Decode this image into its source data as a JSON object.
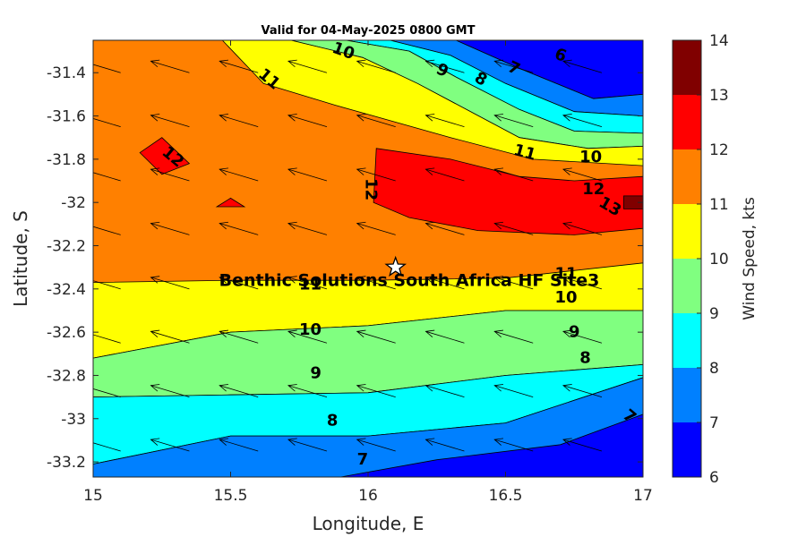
{
  "chart_data": {
    "type": "contour",
    "title": "Valid for 04-May-2025 0800 GMT",
    "xlabel": "Longitude, E",
    "ylabel": "Latitude, S",
    "xlim": [
      15,
      17
    ],
    "ylim": [
      -33.27,
      -31.25
    ],
    "xticks": [
      "15",
      "15.5",
      "16",
      "16.5",
      "17"
    ],
    "xtick_values": [
      15,
      15.5,
      16,
      16.5,
      17
    ],
    "yticks": [
      "-31.4",
      "-31.6",
      "-31.8",
      "-32",
      "-32.2",
      "-32.4",
      "-32.6",
      "-32.8",
      "-33",
      "-33.2"
    ],
    "ytick_values": [
      -31.4,
      -31.6,
      -31.8,
      -32,
      -32.2,
      -32.4,
      -32.6,
      -32.8,
      -33,
      -33.2
    ],
    "colorbar": {
      "label": "Wind Speed, kts",
      "ticks": [
        "6",
        "7",
        "8",
        "9",
        "10",
        "11",
        "12",
        "13",
        "14"
      ],
      "levels": [
        6,
        7,
        8,
        9,
        10,
        11,
        12,
        13,
        14
      ],
      "colors": [
        "#0000ff",
        "#0080ff",
        "#00ffff",
        "#80ff80",
        "#ffff00",
        "#ff8000",
        "#ff0000",
        "#800000"
      ]
    },
    "site": {
      "name": "Benthic Solutions South Africa HF Site3",
      "lon": 16.1,
      "lat": -32.3
    },
    "contour_bands": [
      {
        "min": 6,
        "poly": [
          [
            16.32,
            -31.25
          ],
          [
            16.55,
            -31.38
          ],
          [
            16.82,
            -31.52
          ],
          [
            17,
            -31.5
          ],
          [
            17,
            -31.25
          ]
        ]
      },
      {
        "min": 7,
        "poly": [
          [
            16.08,
            -31.25
          ],
          [
            16.3,
            -31.32
          ],
          [
            16.5,
            -31.45
          ],
          [
            16.75,
            -31.58
          ],
          [
            17,
            -31.6
          ],
          [
            17,
            -31.5
          ],
          [
            16.82,
            -31.52
          ],
          [
            16.55,
            -31.38
          ],
          [
            16.32,
            -31.25
          ]
        ]
      },
      {
        "min": 8,
        "poly": [
          [
            15.92,
            -31.25
          ],
          [
            16.15,
            -31.3
          ],
          [
            16.32,
            -31.42
          ],
          [
            16.55,
            -31.57
          ],
          [
            16.75,
            -31.67
          ],
          [
            17,
            -31.68
          ],
          [
            17,
            -31.6
          ],
          [
            16.75,
            -31.58
          ],
          [
            16.5,
            -31.45
          ],
          [
            16.3,
            -31.32
          ],
          [
            16.08,
            -31.25
          ]
        ]
      },
      {
        "min": 9,
        "poly": [
          [
            15.72,
            -31.25
          ],
          [
            15.98,
            -31.33
          ],
          [
            16.18,
            -31.45
          ],
          [
            16.55,
            -31.7
          ],
          [
            16.8,
            -31.75
          ],
          [
            17,
            -31.74
          ],
          [
            17,
            -31.68
          ],
          [
            16.75,
            -31.67
          ],
          [
            16.55,
            -31.57
          ],
          [
            16.32,
            -31.42
          ],
          [
            16.15,
            -31.3
          ],
          [
            15.92,
            -31.25
          ]
        ]
      },
      {
        "min": 10,
        "poly": [
          [
            15.47,
            -31.25
          ],
          [
            15.62,
            -31.45
          ],
          [
            15.88,
            -31.55
          ],
          [
            16.3,
            -31.7
          ],
          [
            16.6,
            -31.8
          ],
          [
            17,
            -31.83
          ],
          [
            17,
            -31.74
          ],
          [
            16.8,
            -31.75
          ],
          [
            16.55,
            -31.7
          ],
          [
            16.18,
            -31.45
          ],
          [
            15.98,
            -31.33
          ],
          [
            15.72,
            -31.25
          ]
        ]
      },
      {
        "min": 10,
        "poly": [
          [
            15,
            -32.37
          ],
          [
            15.5,
            -32.36
          ],
          [
            16,
            -32.36
          ],
          [
            16.5,
            -32.35
          ],
          [
            17,
            -32.28
          ],
          [
            17,
            -32.5
          ],
          [
            16.5,
            -32.5
          ],
          [
            16,
            -32.57
          ],
          [
            15.5,
            -32.6
          ],
          [
            15,
            -32.72
          ]
        ]
      },
      {
        "min": 12,
        "poly": [
          [
            16.03,
            -31.75
          ],
          [
            16.3,
            -31.8
          ],
          [
            16.55,
            -31.88
          ],
          [
            16.75,
            -31.9
          ],
          [
            17,
            -31.88
          ],
          [
            17,
            -32.12
          ],
          [
            16.75,
            -32.15
          ],
          [
            16.4,
            -32.13
          ],
          [
            16.15,
            -32.07
          ],
          [
            16.02,
            -32
          ]
        ]
      },
      {
        "min": 12,
        "poly": [
          [
            15.17,
            -31.77
          ],
          [
            15.25,
            -31.7
          ],
          [
            15.35,
            -31.82
          ],
          [
            15.25,
            -31.87
          ]
        ]
      },
      {
        "min": 12,
        "poly": [
          [
            15.45,
            -32.02
          ],
          [
            15.5,
            -31.98
          ],
          [
            15.55,
            -32.02
          ]
        ]
      },
      {
        "min": 13,
        "poly": [
          [
            16.93,
            -31.97
          ],
          [
            17,
            -31.97
          ],
          [
            17,
            -32.03
          ],
          [
            16.93,
            -32.03
          ]
        ]
      },
      {
        "min": 9,
        "poly": [
          [
            15,
            -32.72
          ],
          [
            15.5,
            -32.6
          ],
          [
            16,
            -32.57
          ],
          [
            16.5,
            -32.5
          ],
          [
            17,
            -32.5
          ],
          [
            17,
            -32.75
          ],
          [
            16.5,
            -32.8
          ],
          [
            16,
            -32.88
          ],
          [
            15.5,
            -32.89
          ],
          [
            15,
            -32.9
          ]
        ]
      },
      {
        "min": 8,
        "poly": [
          [
            15,
            -32.9
          ],
          [
            15.5,
            -32.89
          ],
          [
            16,
            -32.88
          ],
          [
            16.5,
            -32.8
          ],
          [
            17,
            -32.75
          ],
          [
            17,
            -32.81
          ],
          [
            16.5,
            -33.02
          ],
          [
            16,
            -33.08
          ],
          [
            15.5,
            -33.08
          ],
          [
            15,
            -33.21
          ]
        ]
      },
      {
        "min": 7,
        "poly": [
          [
            15,
            -33.21
          ],
          [
            15.5,
            -33.08
          ],
          [
            16,
            -33.08
          ],
          [
            16.5,
            -33.02
          ],
          [
            17,
            -32.81
          ],
          [
            17,
            -33.27
          ],
          [
            15.33,
            -33.27
          ],
          [
            15,
            -33.27
          ]
        ]
      },
      {
        "min": 6,
        "poly": [
          [
            15.9,
            -33.27
          ],
          [
            16.25,
            -33.19
          ],
          [
            16.7,
            -33.12
          ],
          [
            17,
            -32.98
          ],
          [
            17,
            -33.27
          ]
        ]
      }
    ],
    "contour_labels": [
      {
        "text": "6",
        "lon": 16.7,
        "lat": -31.32,
        "rot": 20
      },
      {
        "text": "7",
        "lon": 16.53,
        "lat": -31.38,
        "rot": 25
      },
      {
        "text": "8",
        "lon": 16.41,
        "lat": -31.43,
        "rot": 30
      },
      {
        "text": "9",
        "lon": 16.27,
        "lat": -31.39,
        "rot": 25
      },
      {
        "text": "10",
        "lon": 15.91,
        "lat": -31.3,
        "rot": 20
      },
      {
        "text": "11",
        "lon": 15.64,
        "lat": -31.43,
        "rot": 40
      },
      {
        "text": "12",
        "lon": 15.29,
        "lat": -31.79,
        "rot": 40
      },
      {
        "text": "12",
        "lon": 16.01,
        "lat": -31.94,
        "rot": 90
      },
      {
        "text": "11",
        "lon": 16.57,
        "lat": -31.77,
        "rot": 15
      },
      {
        "text": "10",
        "lon": 16.81,
        "lat": -31.79,
        "rot": 0
      },
      {
        "text": "12",
        "lon": 16.82,
        "lat": -31.94,
        "rot": 0
      },
      {
        "text": "13",
        "lon": 16.88,
        "lat": -32.02,
        "rot": 30
      },
      {
        "text": "11",
        "lon": 15.79,
        "lat": -32.38,
        "rot": 0
      },
      {
        "text": "11",
        "lon": 16.72,
        "lat": -32.33,
        "rot": 0
      },
      {
        "text": "10",
        "lon": 16.72,
        "lat": -32.44,
        "rot": 0
      },
      {
        "text": "10",
        "lon": 15.79,
        "lat": -32.59,
        "rot": 0
      },
      {
        "text": "9",
        "lon": 16.75,
        "lat": -32.6,
        "rot": 0
      },
      {
        "text": "9",
        "lon": 15.81,
        "lat": -32.79,
        "rot": 0
      },
      {
        "text": "8",
        "lon": 16.79,
        "lat": -32.72,
        "rot": 0
      },
      {
        "text": "8",
        "lon": 15.87,
        "lat": -33.01,
        "rot": 0
      },
      {
        "text": "7",
        "lon": 16.95,
        "lat": -32.99,
        "rot": 40
      },
      {
        "text": "7",
        "lon": 15.98,
        "lat": -33.19,
        "rot": 0
      }
    ],
    "wind_vectors": {
      "lons": [
        15.1,
        15.35,
        15.6,
        15.85,
        16.1,
        16.35,
        16.6,
        16.85
      ],
      "lats": [
        -31.4,
        -31.65,
        -31.9,
        -32.15,
        -32.4,
        -32.65,
        -32.9,
        -33.15
      ],
      "u_kts": -10,
      "v_kts": 3
    }
  }
}
